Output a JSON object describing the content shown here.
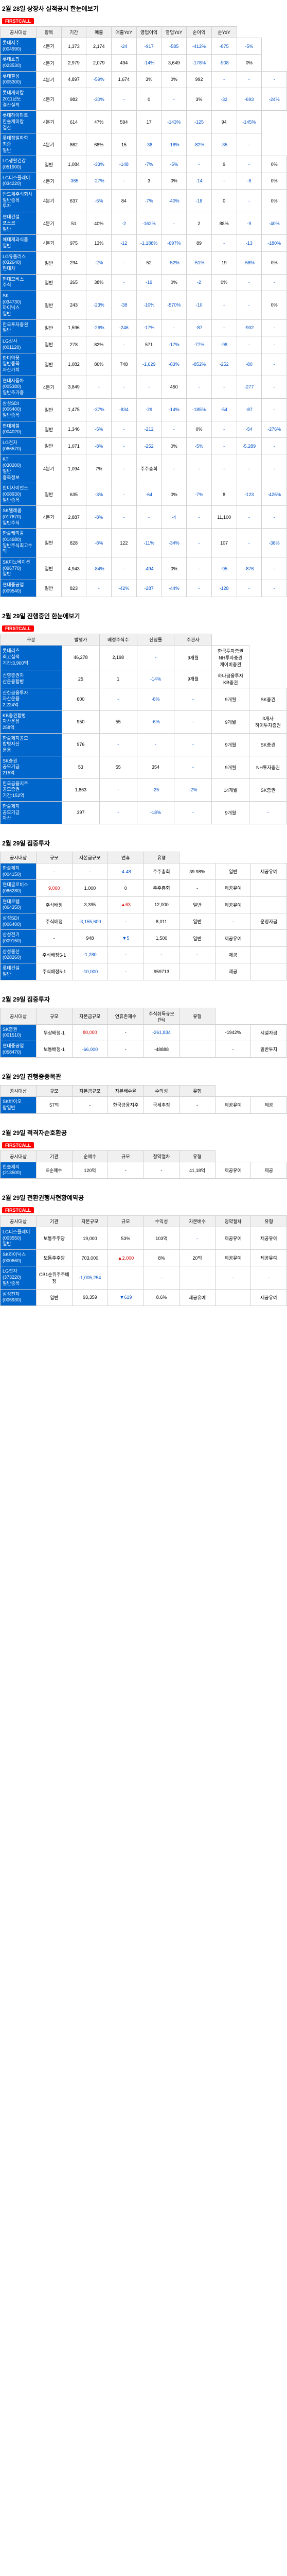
{
  "sections": {
    "s1": "2월 28일 상장사 실적공시 한눈에보기",
    "s2": "2월 29일 진행중인 한눈에보기",
    "s3": "2월 29일 집중투자",
    "s4": "2월 29일 집중투자",
    "s5": "2월 29일 진행중종목관",
    "s6": "2월 29일 적격자순호환공",
    "s7": "2월 29일 전환권행사현황예약공"
  },
  "tag": "FIRSTCALL",
  "tbl1": {
    "headers": [
      "공시대상",
      "항목",
      "기간",
      "매출",
      "매출YoY",
      "영업이익",
      "영업YoY",
      "순이익",
      "순YoY"
    ],
    "rows": [
      {
        "label": "롯데지주<br>(004990)",
        "cells": [
          "4분기",
          "1,373",
          "2,174",
          "-24",
          "-917",
          "-585",
          "-412%",
          "-875",
          "-5%"
        ]
      },
      {
        "label": "롯데쇼핑<br>(023530)",
        "cells": [
          "4분기",
          "2,979",
          "2,079",
          "494",
          "-14%",
          "3,649",
          "-178%",
          "-908",
          "0%"
        ]
      },
      {
        "label": "롯데칠성<br>(005300)",
        "cells": [
          "4분기",
          "4,897",
          "-59%",
          "1,674",
          "3%",
          "0%",
          "992",
          "-",
          "-",
          "-"
        ]
      },
      {
        "label": "롯데케미칼<br>2011년도<br>결산실적",
        "cells": [
          "4분기",
          "982",
          "-30%",
          "-",
          "0",
          "-",
          "3%",
          "-32",
          "-693",
          "-24%"
        ]
      },
      {
        "label": "롯데하이마트<br>한솔케미칼<br>결산",
        "cells": [
          "4분기",
          "614",
          "47%",
          "594",
          "17",
          "-143%",
          "-125",
          "94",
          "-145%"
        ]
      },
      {
        "label": "롯데정밀화학<br>최종<br>일반",
        "cells": [
          "4분기",
          "862",
          "68%",
          "15",
          "-38",
          "-18%",
          "-82%",
          "-35",
          "-"
        ]
      },
      {
        "label": "LG생활건강<br>(051900)",
        "cells": [
          "일반",
          "1,084",
          "-33%",
          "-148",
          "-7%",
          "-5%",
          "-",
          "9",
          "-",
          "0%"
        ]
      },
      {
        "label": "LG디스플레이<br>(034220)",
        "cells": [
          "4분기",
          "-365",
          "-27%",
          "-",
          "3",
          "0%",
          "-14",
          "-",
          "-6",
          "0%"
        ]
      },
      {
        "label": "반도체주식회사<br>일반종목<br>투자",
        "cells": [
          "4분기",
          "637",
          "-6%",
          "84",
          "-7%",
          "-40%",
          "-18",
          "0",
          "-",
          "0%"
        ]
      },
      {
        "label": "현대건설<br>포스코<br>일반",
        "cells": [
          "4분기",
          "51",
          "40%",
          "-2",
          "-162%",
          "-",
          "2",
          "88%",
          "-9",
          "-40%"
        ]
      },
      {
        "label": "해태제과식품<br>일반",
        "cells": [
          "4분기",
          "975",
          "13%",
          "-12",
          "-1,188%",
          "-697%",
          "89",
          "-",
          "-13",
          "-180%"
        ]
      },
      {
        "label": "LG유플러스<br>(032640)<br>현대차",
        "cells": [
          "일반",
          "294",
          "-2%",
          "-",
          "52",
          "-52%",
          "-51%",
          "19",
          "-58%",
          "0%"
        ]
      },
      {
        "label": "현대모비스<br>주식",
        "cells": [
          "일반",
          "265",
          "38%",
          "-",
          "-19",
          "0%",
          "-2",
          "0%",
          "-",
          "-"
        ]
      },
      {
        "label": "SK<br>(034730)<br>하이닉스<br>일반",
        "cells": [
          "일반",
          "243",
          "-23%",
          "-38",
          "-10%",
          "-570%",
          "-10",
          "-",
          "-",
          "0%"
        ]
      },
      {
        "label": "한국투자증권<br>일반",
        "cells": [
          "일반",
          "1,596",
          "-26%",
          "-246",
          "-17%",
          "-",
          "-87",
          "-",
          "-902",
          "-"
        ]
      },
      {
        "label": "LG상사<br>(001120)",
        "cells": [
          "일반",
          "278",
          "82%",
          "-",
          "571",
          "-17%",
          "-77%",
          "-98",
          "-",
          "-"
        ]
      },
      {
        "label": "한미약품<br>일반종목<br>자산가치",
        "cells": [
          "일반",
          "1,082",
          "86%",
          "748",
          "-1,629",
          "-83%",
          "-852%",
          "-252",
          "-80",
          "-"
        ]
      },
      {
        "label": "현대자동차<br>(005380)<br>일반추가종",
        "cells": [
          "4분기",
          "3,849",
          "-",
          "-",
          "-",
          "450",
          "-",
          "-",
          "-277",
          "-"
        ]
      },
      {
        "label": "삼성SDI<br>(006400)<br>일반종목",
        "cells": [
          "일반",
          "1,475",
          "-37%",
          "-834",
          "-29",
          "-14%",
          "-185%",
          "-54",
          "-87",
          "-"
        ]
      },
      {
        "label": "현대제철<br>(004020)",
        "cells": [
          "일반",
          "1,346",
          "-5%",
          "-",
          "-212",
          "-",
          "0%",
          "-",
          "-54",
          "-276%"
        ]
      },
      {
        "label": "LG전자<br>(066570)",
        "cells": [
          "일반",
          "1,071",
          "-8%",
          "-",
          "-252",
          "0%",
          "-5%",
          "-",
          "-5,289",
          "-"
        ]
      },
      {
        "label": "KT<br>(030200)<br>일반<br>종목정보",
        "cells": [
          "4분기",
          "1,094",
          "7%",
          "-",
          "주주총회",
          "-",
          "-",
          "-",
          "-",
          "-"
        ]
      },
      {
        "label": "한미사이언스<br>(008930)<br>일반종목",
        "cells": [
          "일반",
          "635",
          "-3%",
          "-",
          "-64",
          "0%",
          "-7%",
          "8",
          "-123",
          "-425%"
        ]
      },
      {
        "label": "SK텔레콤<br>(017670)<br>일반주식",
        "cells": [
          "4분기",
          "2,887",
          "-8%",
          "-",
          "-",
          "-4",
          "-",
          "11,100",
          "-",
          "-"
        ]
      },
      {
        "label": "한솔케미칼<br>(014680)<br>일반주식최고수익",
        "cells": [
          "일반",
          "828",
          "-8%",
          "122",
          "-11%",
          "-34%",
          "-",
          "107",
          "-",
          "-38%"
        ]
      },
      {
        "label": "SK이노베이션<br>(096770)<br>일반",
        "cells": [
          "일반",
          "4,943",
          "-84%",
          "-",
          "-494",
          "0%",
          "-",
          "-95",
          "-876",
          "-"
        ]
      },
      {
        "label": "현대중공업<br>(009540)",
        "cells": [
          "일반",
          "823",
          "-",
          "-42%",
          "-287",
          "-44%",
          "-",
          "-128",
          "-",
          "-"
        ]
      }
    ]
  },
  "tbl2": {
    "headers": [
      "구분",
      "발행가",
      "배정주식수",
      "신청률",
      "주관사"
    ],
    "rows": [
      {
        "label": "롯데리츠<br>최고실적<br>기간:3,900억",
        "cells": [
          "46,278",
          "2,198",
          "-",
          "9개월",
          "한국투자증권<br>NH투자증권<br>케이비증권"
        ]
      },
      {
        "label": "신영증권자<br>산운용합병",
        "cells": [
          "25",
          "1",
          "-14%",
          "9개월",
          "하나금융투자<br>KB증권"
        ]
      },
      {
        "label": "신한금융투자<br>자산운용<br>2,224억",
        "cells": [
          "600",
          "-",
          "-8%",
          "-",
          "9개월",
          "SK증권"
        ]
      },
      {
        "label": "KB증권합병<br>자산운용<br>258억",
        "cells": [
          "950",
          "55",
          "-6%",
          "-",
          "9개월",
          "3개사<br>하이투자증권"
        ]
      },
      {
        "label": "한솔제지공모<br>합병자산<br>운용",
        "cells": [
          "976",
          "-",
          "-",
          "-",
          "9개월",
          "SK증권"
        ]
      },
      {
        "label": "SK증권<br>공모기금<br>215억",
        "cells": [
          "53",
          "55",
          "354",
          "-",
          "9개월",
          "NH투자증권"
        ]
      },
      {
        "label": "한국금융지주<br>공모증권<br>기간:152억",
        "cells": [
          "1,863",
          "-",
          "-25",
          "-2%",
          "14개월",
          "SK증권"
        ]
      },
      {
        "label": "한솔제지<br>공모기금<br>자산",
        "cells": [
          "397",
          "-",
          "-18%",
          "-",
          "9개월",
          "-"
        ]
      }
    ]
  },
  "tbl3": {
    "headers": [
      "공시대상",
      "규모",
      "자본금규모",
      "연휴",
      "유형"
    ],
    "rows": [
      {
        "label": "한솔제지<br>(004150)",
        "cells": [
          {
            "t": "-",
            "c": ""
          },
          {
            "t": "-",
            "c": ""
          },
          {
            "t": "-4.48",
            "c": "blue"
          },
          {
            "t": "주주총회",
            "c": ""
          },
          {
            "t": "39.98%",
            "c": ""
          },
          {
            "t": "일반",
            "c": ""
          },
          {
            "t": "제공유예",
            "c": ""
          }
        ]
      },
      {
        "label": "현대글로비스<br>(086280)",
        "cells": [
          {
            "t": "9,000",
            "c": "red"
          },
          {
            "t": "1,000",
            "c": ""
          },
          {
            "t": "0",
            "c": ""
          },
          {
            "t": "주주총회",
            "c": ""
          },
          {
            "t": "-",
            "c": ""
          },
          {
            "t": "제공유예",
            "c": ""
          },
          {
            "t": "",
            "c": ""
          }
        ]
      },
      {
        "label": "현대로템<br>(064350)",
        "cells": [
          {
            "t": "주식배정",
            "c": ""
          },
          {
            "t": "3,395",
            "c": ""
          },
          {
            "t": "▲63",
            "c": "red"
          },
          {
            "t": "12,000",
            "c": ""
          },
          {
            "t": "일반",
            "c": ""
          },
          {
            "t": "제공유예",
            "c": ""
          },
          {
            "t": "",
            "c": ""
          }
        ]
      },
      {
        "label": "삼성SDI<br>(006400)",
        "cells": [
          {
            "t": "주식배정",
            "c": ""
          },
          {
            "t": "-3,155,600",
            "c": "blue"
          },
          {
            "t": "-",
            "c": ""
          },
          {
            "t": "8,011",
            "c": ""
          },
          {
            "t": "일반",
            "c": ""
          },
          {
            "t": "-",
            "c": ""
          },
          {
            "t": "운영자금",
            "c": ""
          }
        ]
      },
      {
        "label": "삼성전기<br>(009150)",
        "cells": [
          {
            "t": "-",
            "c": ""
          },
          {
            "t": "948",
            "c": ""
          },
          {
            "t": "▼5",
            "c": "blue"
          },
          {
            "t": "1,500",
            "c": ""
          },
          {
            "t": "일반",
            "c": ""
          },
          {
            "t": "제공유예",
            "c": ""
          },
          {
            "t": "",
            "c": ""
          }
        ]
      },
      {
        "label": "삼성물산<br>(028260)",
        "cells": [
          {
            "t": "주식배정5-1",
            "c": ""
          },
          {
            "t": "-1,280",
            "c": "blue"
          },
          {
            "t": "-",
            "c": ""
          },
          {
            "t": "-",
            "c": ""
          },
          {
            "t": "-",
            "c": ""
          },
          {
            "t": "제공",
            "c": ""
          },
          {
            "t": "",
            "c": ""
          }
        ]
      },
      {
        "label": "롯데건설<br>일반",
        "cells": [
          {
            "t": "주식배정5-1",
            "c": ""
          },
          {
            "t": "-10,000",
            "c": "blue"
          },
          {
            "t": "-",
            "c": ""
          },
          {
            "t": "959713",
            "c": ""
          },
          {
            "t": "",
            "c": ""
          },
          {
            "t": "제공",
            "c": ""
          },
          {
            "t": "",
            "c": ""
          }
        ]
      }
    ]
  },
  "tbl4": {
    "headers": [
      "공시대상",
      "규모",
      "자본금규모",
      "연휴존재수",
      "주식취득규모(%)",
      "유형"
    ],
    "rows": [
      {
        "label": "SK증권<br>(001510)",
        "cells": [
          {
            "t": "무상배정-1",
            "c": ""
          },
          {
            "t": "80,000",
            "c": "red"
          },
          {
            "t": "-",
            "c": ""
          },
          {
            "t": "-261,834",
            "c": "blue"
          },
          {
            "t": "",
            "c": ""
          },
          {
            "t": "-1942%",
            "c": ""
          },
          {
            "t": "시설자금",
            "c": ""
          }
        ]
      },
      {
        "label": "현대중공업<br>(058470)",
        "cells": [
          {
            "t": "보통배정-1",
            "c": ""
          },
          {
            "t": "-66,000",
            "c": "blue"
          },
          {
            "t": "-",
            "c": ""
          },
          {
            "t": "-48888",
            "c": ""
          },
          {
            "t": "",
            "c": ""
          },
          {
            "t": "-",
            "c": ""
          },
          {
            "t": "일반투자",
            "c": ""
          }
        ]
      }
    ]
  },
  "tbl5": {
    "headers": [
      "공시대상",
      "규모",
      "자본금규모",
      "자본배수율",
      "수익성",
      "유형"
    ],
    "rows": [
      {
        "label": "SK바이오<br>팜일반",
        "cells": [
          {
            "t": "57억",
            "c": ""
          },
          {
            "t": "-",
            "c": ""
          },
          {
            "t": "한국금융지주",
            "c": ""
          },
          {
            "t": "국세추징",
            "c": ""
          },
          {
            "t": "-",
            "c": ""
          },
          {
            "t": "제공유예",
            "c": ""
          },
          {
            "t": "제공",
            "c": ""
          }
        ]
      }
    ]
  },
  "tbl6": {
    "headers": [
      "공시대상",
      "기관",
      "순매수",
      "규모",
      "청약절차",
      "유형"
    ],
    "rows": [
      {
        "label": "한솔제지<br>(213500)",
        "cells": [
          {
            "t": "E순매수",
            "c": ""
          },
          {
            "t": "120억",
            "c": ""
          },
          {
            "t": "-",
            "c": ""
          },
          {
            "t": "-",
            "c": ""
          },
          {
            "t": "41,18억",
            "c": ""
          },
          {
            "t": "제공유예",
            "c": ""
          },
          {
            "t": "제공",
            "c": ""
          }
        ]
      }
    ]
  },
  "tbl7": {
    "headers": [
      "공시대상",
      "기관",
      "자본규모",
      "규모",
      "수익성",
      "자본배수",
      "청약절차",
      "유형"
    ],
    "rows": [
      {
        "label": "LG디스플레이<br>(003550)<br>일반",
        "cells": [
          "보통주주당",
          "19,000",
          "53%",
          "103억",
          "-",
          "제공유예",
          "제공유예"
        ]
      },
      {
        "label": "SK하이닉스<br>(000660)",
        "cells": [
          "보통주주당",
          "703,000",
          "▲2,000",
          "8%",
          "20억",
          "제공유예",
          "제공유예"
        ]
      },
      {
        "label": "LG전자<br>(373220)<br>일반종목",
        "cells": [
          "CB1순위주주배정",
          "-1,005,254",
          "",
          "-",
          "",
          "-",
          "-"
        ]
      },
      {
        "label": "삼성전자<br>(005930)",
        "cells": [
          "일반",
          "93,359",
          "▼619",
          "8.6%",
          "제공유예",
          "",
          "제공유예"
        ]
      }
    ]
  }
}
